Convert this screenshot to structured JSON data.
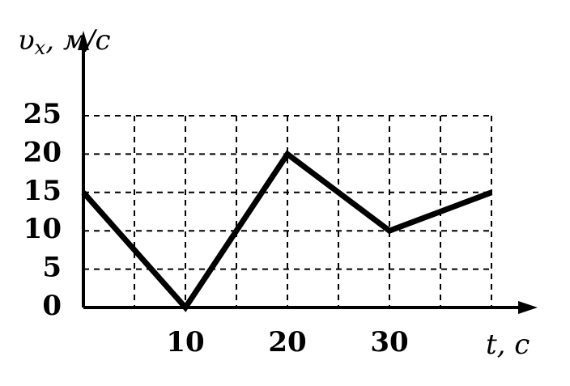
{
  "chart_data": {
    "type": "line",
    "ylabel": {
      "symbol": "υ",
      "subscript": "x",
      "unit": ", м/с"
    },
    "xlabel": "t, c",
    "x": [
      0,
      10,
      20,
      30,
      40
    ],
    "series": [
      {
        "color": "#000000",
        "values": [
          15,
          0,
          20,
          10,
          15
        ]
      }
    ],
    "xlim": [
      0,
      40
    ],
    "ylim": [
      0,
      25
    ],
    "xticks": [
      10,
      20,
      30
    ],
    "yticks": [
      0,
      5,
      10,
      15,
      20,
      25
    ],
    "xgrid": [
      5,
      10,
      15,
      20,
      25,
      30,
      35,
      40
    ],
    "grid": true
  }
}
